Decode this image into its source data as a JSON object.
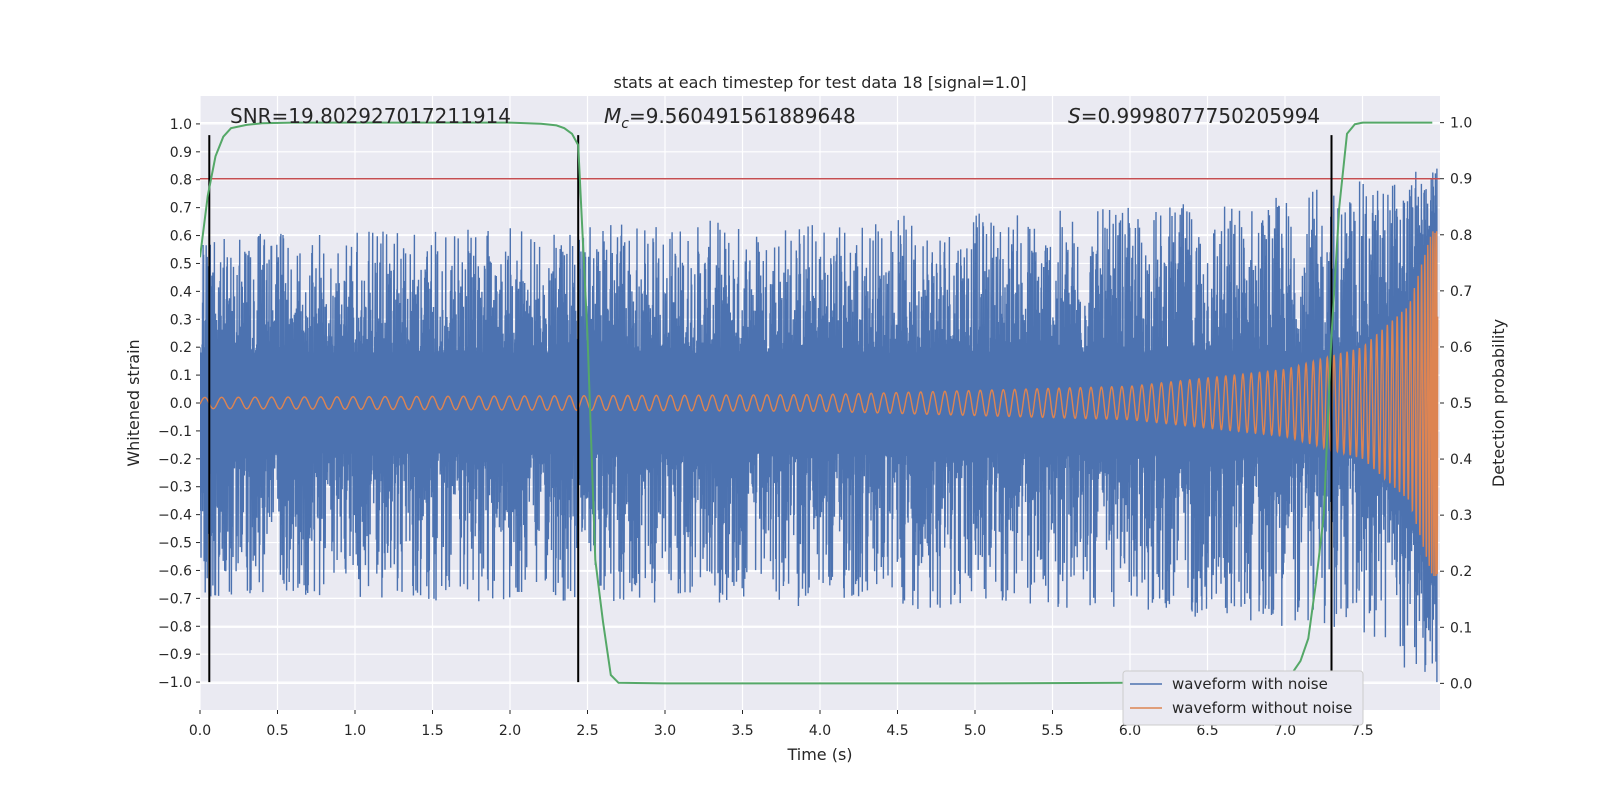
{
  "chart_data": {
    "type": "line",
    "title": "stats at each timestep for test data 18 [signal=1.0]",
    "xlabel": "Time (s)",
    "ylabel": "Whitened strain",
    "y2label": "Detection probability",
    "xlim": [
      0.0,
      8.0
    ],
    "ylim": [
      -1.1,
      1.1
    ],
    "y2lim": [
      -0.0475,
      1.0475
    ],
    "xticks": [
      "0.0",
      "0.5",
      "1.0",
      "1.5",
      "2.0",
      "2.5",
      "3.0",
      "3.5",
      "4.0",
      "4.5",
      "5.0",
      "5.5",
      "6.0",
      "6.5",
      "7.0",
      "7.5"
    ],
    "xtick_values": [
      0,
      0.5,
      1,
      1.5,
      2,
      2.5,
      3,
      3.5,
      4,
      4.5,
      5,
      5.5,
      6,
      6.5,
      7,
      7.5
    ],
    "yticks": [
      "1.0",
      "0.9",
      "0.8",
      "0.7",
      "0.6",
      "0.5",
      "0.4",
      "0.3",
      "0.2",
      "0.1",
      "0.0",
      "−0.1",
      "−0.2",
      "−0.3",
      "−0.4",
      "−0.5",
      "−0.6",
      "−0.7",
      "−0.8",
      "−0.9",
      "−1.0"
    ],
    "ytick_values": [
      1.0,
      0.9,
      0.8,
      0.7,
      0.6,
      0.5,
      0.4,
      0.3,
      0.2,
      0.1,
      0.0,
      -0.1,
      -0.2,
      -0.3,
      -0.4,
      -0.5,
      -0.6,
      -0.7,
      -0.8,
      -0.9,
      -1.0
    ],
    "y2ticks": [
      "1.0",
      "0.9",
      "0.8",
      "0.7",
      "0.6",
      "0.5",
      "0.4",
      "0.3",
      "0.2",
      "0.1",
      "0.0"
    ],
    "y2tick_values": [
      1.0,
      0.9,
      0.8,
      0.7,
      0.6,
      0.5,
      0.4,
      0.3,
      0.2,
      0.1,
      0.0
    ],
    "annotations": {
      "snr": "SNR=19.802927017211914",
      "mc_symbol": "M",
      "mc_sub": "c",
      "mc_value": "=9.560491561889648",
      "s_symbol": "S",
      "s_value": "=0.9998077750205994"
    },
    "legend": {
      "placement": "lower-right",
      "entries": [
        "waveform with noise",
        "waveform without noise"
      ]
    },
    "threshold_line": {
      "y2": 0.9,
      "color": "#c44e52"
    },
    "vertical_markers_x": [
      0.06,
      2.44,
      7.3
    ],
    "series": [
      {
        "name": "waveform with noise",
        "color": "#4c72b0",
        "description": "noisy whitened strain, envelope approx ±0.35 to ±0.75, growing near merger at 7.95 s",
        "amplitude_envelope": {
          "x": [
            0,
            6.0,
            7.0,
            7.5,
            7.9
          ],
          "ymax": [
            0.6,
            0.7,
            0.75,
            0.8,
            0.84
          ],
          "ymin": [
            -0.7,
            -0.75,
            -0.8,
            -0.85,
            -1.0
          ]
        }
      },
      {
        "name": "waveform without noise",
        "color": "#dd8452",
        "description": "chirp signal, amplitude grows from 0.02 to ~0.65 toward 7.98 s",
        "amplitude_envelope": {
          "x": [
            0,
            4,
            6,
            7,
            7.5,
            7.8,
            7.95
          ],
          "ymax": [
            0.02,
            0.03,
            0.06,
            0.12,
            0.2,
            0.35,
            0.62
          ]
        }
      },
      {
        "name": "detection probability",
        "color": "#55a868",
        "axis": "y2",
        "x": [
          0.0,
          0.05,
          0.1,
          0.15,
          0.2,
          0.3,
          0.4,
          0.6,
          1.0,
          1.5,
          2.0,
          2.2,
          2.3,
          2.35,
          2.4,
          2.44,
          2.5,
          2.55,
          2.6,
          2.65,
          2.7,
          3.0,
          4.0,
          5.0,
          6.0,
          6.8,
          6.95,
          7.0,
          7.05,
          7.1,
          7.15,
          7.2,
          7.25,
          7.3,
          7.35,
          7.4,
          7.45,
          7.5,
          7.6,
          7.7,
          7.8,
          7.95
        ],
        "y": [
          0.76,
          0.87,
          0.94,
          0.975,
          0.99,
          0.996,
          0.999,
          1.0,
          1.0,
          1.0,
          1.0,
          0.998,
          0.995,
          0.99,
          0.98,
          0.96,
          0.62,
          0.22,
          0.11,
          0.015,
          0.001,
          0.0,
          0.0,
          0.0,
          0.001,
          0.001,
          0.005,
          0.01,
          0.02,
          0.04,
          0.08,
          0.18,
          0.3,
          0.62,
          0.85,
          0.98,
          0.997,
          1.0,
          1.0,
          1.0,
          1.0,
          1.0
        ]
      }
    ]
  }
}
